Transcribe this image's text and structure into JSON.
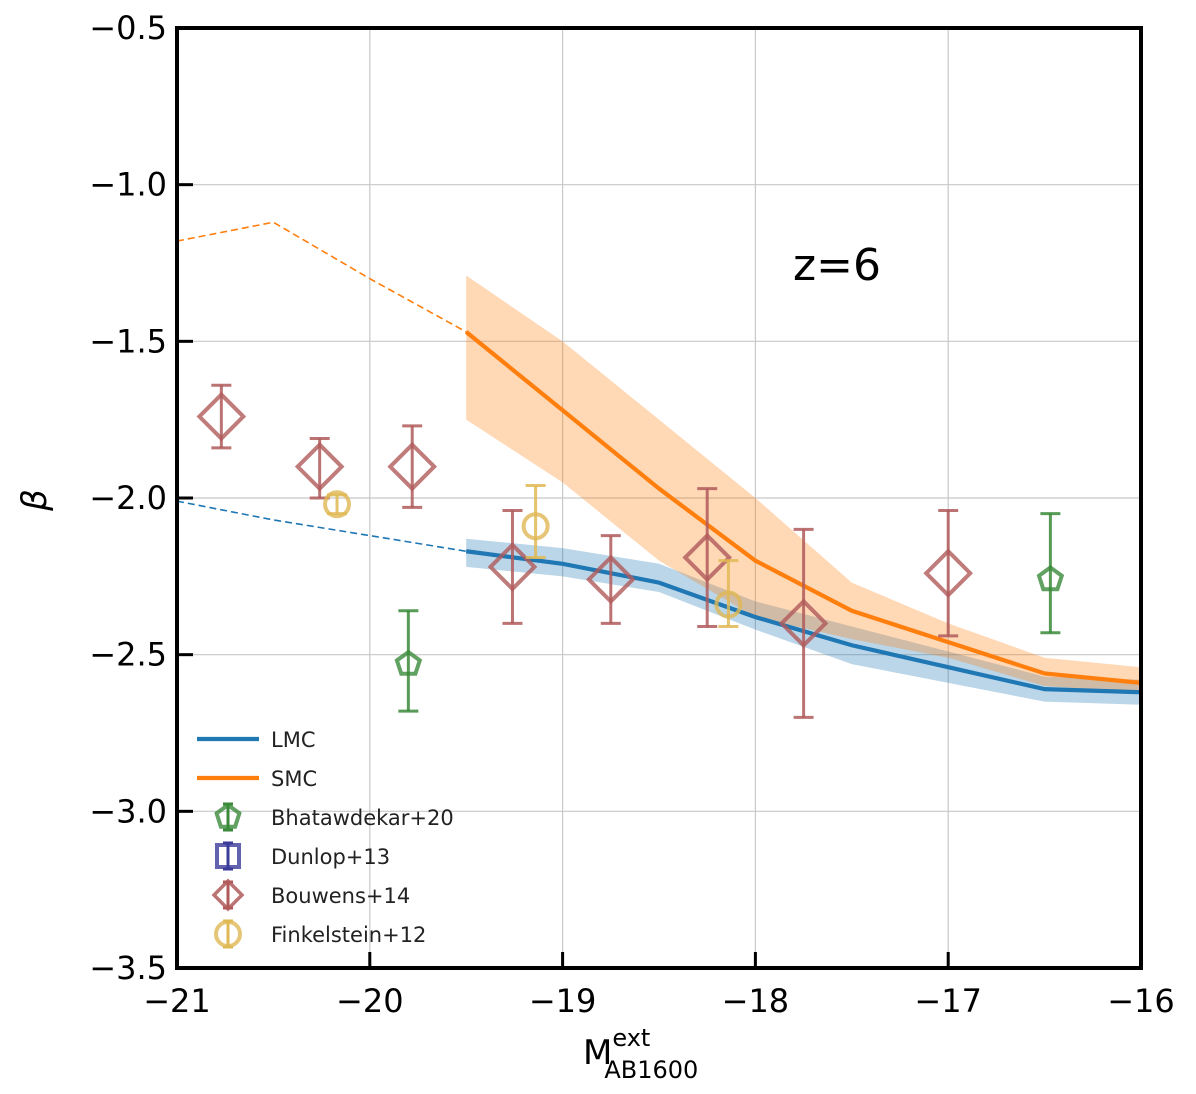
{
  "chart_data": {
    "type": "line",
    "title": "",
    "annotation": "z=6",
    "xlabel": {
      "main": "M",
      "sup": "ext",
      "sub": "AB1600"
    },
    "ylabel": "β",
    "xlim": [
      -21,
      -16
    ],
    "ylim": [
      -3.5,
      -0.5
    ],
    "xticks": [
      -21,
      -20,
      -19,
      -18,
      -17,
      -16
    ],
    "yticks": [
      -3.5,
      -3.0,
      -2.5,
      -2.0,
      -1.5,
      -1.0,
      -0.5
    ],
    "xtick_labels": [
      "−21",
      "−20",
      "−19",
      "−18",
      "−17",
      "−16"
    ],
    "ytick_labels": [
      "−3.5",
      "−3.0",
      "−2.5",
      "−2.0",
      "−1.5",
      "−1.0",
      "−0.5"
    ],
    "grid": true,
    "legend_position": "lower-left",
    "colors": {
      "LMC": "#1f77b4",
      "SMC": "#ff7f0e",
      "Bhatawdekar+20": "#3a8a3a",
      "Dunlop+13": "#3b3b9a",
      "Bouwens+14": "#b05a5a",
      "Finkelstein+12": "#e0b854"
    },
    "model_series": [
      {
        "name": "LMC",
        "dashed": {
          "x": [
            -21,
            -20.5,
            -20,
            -19.5
          ],
          "y": [
            -2.01,
            -2.07,
            -2.12,
            -2.17
          ]
        },
        "solid": {
          "x": [
            -19.5,
            -19,
            -18.5,
            -18,
            -17.5,
            -17,
            -16.5,
            -16
          ],
          "y": [
            -2.17,
            -2.21,
            -2.27,
            -2.38,
            -2.47,
            -2.54,
            -2.61,
            -2.62
          ]
        },
        "band_x": [
          -19.5,
          -19,
          -18.5,
          -18,
          -17.5,
          -17,
          -16.5,
          -16
        ],
        "band_low": [
          -2.22,
          -2.25,
          -2.3,
          -2.42,
          -2.53,
          -2.59,
          -2.65,
          -2.66
        ],
        "band_high": [
          -2.13,
          -2.16,
          -2.21,
          -2.33,
          -2.41,
          -2.49,
          -2.57,
          -2.58
        ]
      },
      {
        "name": "SMC",
        "dashed": {
          "x": [
            -21,
            -20.5,
            -20,
            -19.5
          ],
          "y": [
            -1.18,
            -1.12,
            -1.3,
            -1.47
          ]
        },
        "solid": {
          "x": [
            -19.5,
            -19,
            -18.5,
            -18,
            -17.5,
            -17,
            -16.5,
            -16
          ],
          "y": [
            -1.47,
            -1.72,
            -1.97,
            -2.2,
            -2.36,
            -2.46,
            -2.56,
            -2.59
          ]
        },
        "band_x": [
          -19.5,
          -19,
          -18.5,
          -18,
          -17.5,
          -17,
          -16.5,
          -16
        ],
        "band_low": [
          -1.75,
          -1.95,
          -2.2,
          -2.38,
          -2.45,
          -2.51,
          -2.6,
          -2.62
        ],
        "band_high": [
          -1.29,
          -1.5,
          -1.75,
          -2.0,
          -2.27,
          -2.4,
          -2.51,
          -2.54
        ]
      }
    ],
    "observations": [
      {
        "name": "Bhatawdekar+20",
        "marker": "pentagon",
        "points": [
          {
            "x": -19.8,
            "y": -2.53,
            "err_low": 0.15,
            "err_high": 0.17
          },
          {
            "x": -16.47,
            "y": -2.26,
            "err_low": 0.17,
            "err_high": 0.21
          }
        ]
      },
      {
        "name": "Dunlop+13",
        "marker": "square",
        "points": []
      },
      {
        "name": "Bouwens+14",
        "marker": "diamond",
        "points": [
          {
            "x": -20.77,
            "y": -1.74,
            "err_low": 0.1,
            "err_high": 0.1
          },
          {
            "x": -20.26,
            "y": -1.9,
            "err_low": 0.1,
            "err_high": 0.09
          },
          {
            "x": -19.78,
            "y": -1.9,
            "err_low": 0.13,
            "err_high": 0.13
          },
          {
            "x": -19.26,
            "y": -2.22,
            "err_low": 0.18,
            "err_high": 0.18
          },
          {
            "x": -18.75,
            "y": -2.26,
            "err_low": 0.14,
            "err_high": 0.14
          },
          {
            "x": -18.25,
            "y": -2.19,
            "err_low": 0.22,
            "err_high": 0.22
          },
          {
            "x": -17.75,
            "y": -2.4,
            "err_low": 0.3,
            "err_high": 0.3
          },
          {
            "x": -17.0,
            "y": -2.24,
            "err_low": 0.2,
            "err_high": 0.2
          }
        ]
      },
      {
        "name": "Finkelstein+12",
        "marker": "circle",
        "points": [
          {
            "x": -20.17,
            "y": -2.02,
            "err_low": 0.03,
            "err_high": 0.03
          },
          {
            "x": -19.14,
            "y": -2.09,
            "err_low": 0.1,
            "err_high": 0.13
          },
          {
            "x": -18.14,
            "y": -2.34,
            "err_low": 0.07,
            "err_high": 0.14
          }
        ]
      }
    ],
    "legend": [
      "LMC",
      "SMC",
      "Bhatawdekar+20",
      "Dunlop+13",
      "Bouwens+14",
      "Finkelstein+12"
    ]
  }
}
